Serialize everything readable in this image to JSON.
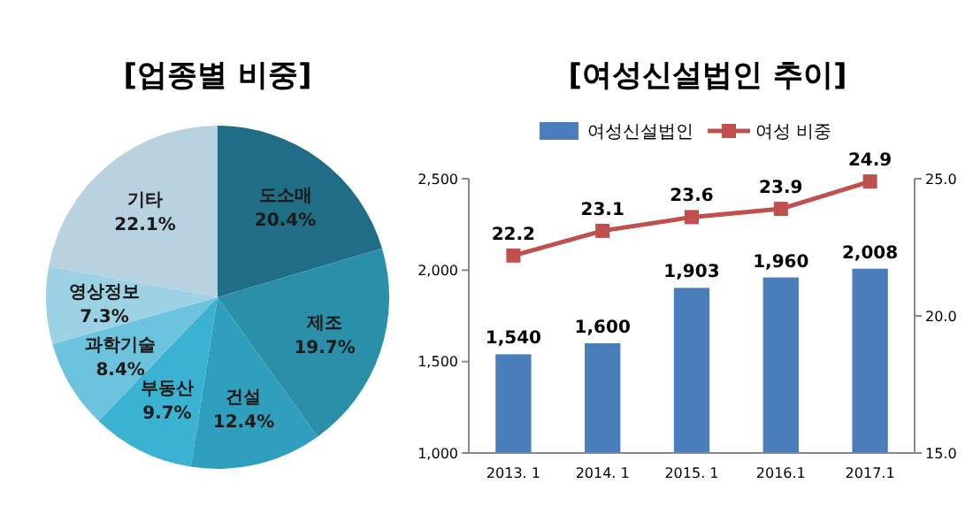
{
  "chart_data": [
    {
      "type": "pie",
      "title": "[업종별 비중]",
      "categories": [
        "도소매",
        "제조",
        "건설",
        "부동산",
        "과학기술",
        "영상정보",
        "기타"
      ],
      "values": [
        20.4,
        19.7,
        12.4,
        9.7,
        8.4,
        7.3,
        22.1
      ],
      "value_labels": [
        "20.4%",
        "19.7%",
        "12.4%",
        "9.7%",
        "8.4%",
        "7.3%",
        "22.1%"
      ],
      "colors": [
        "#1f6e86",
        "#2a8fa8",
        "#2f9fbd",
        "#3ab3d3",
        "#6cc3dd",
        "#9dd2e4",
        "#b9d2df"
      ]
    },
    {
      "type": "bar",
      "title": "[여성신설법인 추이]",
      "categories": [
        "2013. 1",
        "2014. 1",
        "2015. 1",
        "2016.1",
        "2017.1"
      ],
      "series": [
        {
          "name": "여성신설법인",
          "color": "#4a7ebb",
          "values": [
            1540,
            1600,
            1903,
            1960,
            2008
          ],
          "value_labels": [
            "1,540",
            "1,600",
            "1,903",
            "1,960",
            "2,008"
          ]
        },
        {
          "name": "여성 비중",
          "type": "line",
          "axis": "y2",
          "color": "#c0504d",
          "marker": "square",
          "values": [
            22.2,
            23.1,
            23.6,
            23.9,
            24.9
          ],
          "value_labels": [
            "22.2",
            "23.1",
            "23.6",
            "23.9",
            "24.9"
          ]
        }
      ],
      "ylim": [
        1000,
        2500
      ],
      "yticks": [
        {
          "value": 1000,
          "label": "1,000"
        },
        {
          "value": 1500,
          "label": "1,500"
        },
        {
          "value": 2000,
          "label": "2,000"
        },
        {
          "value": 2500,
          "label": "2,500"
        }
      ],
      "y2lim": [
        15,
        25
      ],
      "y2ticks": [
        {
          "value": 15,
          "label": "15.0"
        },
        {
          "value": 20,
          "label": "20.0"
        },
        {
          "value": 25,
          "label": "25.0"
        }
      ],
      "legend": "top",
      "grid": false
    }
  ]
}
